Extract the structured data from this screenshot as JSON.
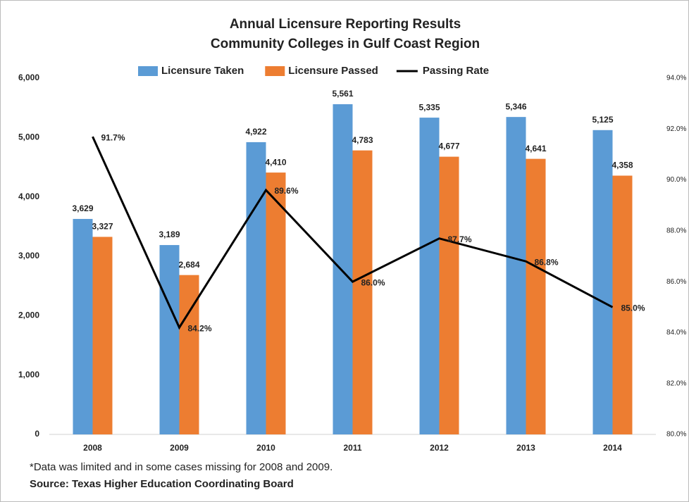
{
  "chart_data": {
    "type": "bar",
    "title": "Annual Licensure Reporting Results",
    "subtitle": "Community Colleges in Gulf Coast Region",
    "categories": [
      "2008",
      "2009",
      "2010",
      "2011",
      "2012",
      "2013",
      "2014"
    ],
    "series": [
      {
        "name": "Licensure Taken",
        "color": "#5b9bd5",
        "values": [
          3629,
          3189,
          4922,
          5561,
          5335,
          5346,
          5125
        ],
        "value_labels": [
          "3,629",
          "3,189",
          "4,922",
          "5,561",
          "5,335",
          "5,346",
          "5,125"
        ]
      },
      {
        "name": "Licensure Passed",
        "color": "#ed7d31",
        "values": [
          3327,
          2684,
          4410,
          4783,
          4677,
          4641,
          4358
        ],
        "value_labels": [
          "3,327",
          "2,684",
          "4,410",
          "4,783",
          "4,677",
          "4,641",
          "4,358"
        ]
      },
      {
        "name": "Passing Rate",
        "color": "#000000",
        "type": "line",
        "axis": "y2",
        "values": [
          91.7,
          84.2,
          89.6,
          86.0,
          87.7,
          86.8,
          85.0
        ],
        "value_labels": [
          "91.7%",
          "84.2%",
          "89.6%",
          "86.0%",
          "87.7%",
          "86.8%",
          "85.0%"
        ]
      }
    ],
    "ylim": [
      0,
      6000
    ],
    "yticks": [
      0,
      {
        "value": 1000,
        "label": "1,000"
      },
      {
        "value": 2000,
        "label": "2,000"
      },
      {
        "value": 3000,
        "label": "3,000"
      },
      {
        "value": 4000,
        "label": "4,000"
      },
      {
        "value": 5000,
        "label": "5,000"
      },
      {
        "value": 6000,
        "label": "6,000"
      }
    ],
    "y2lim": [
      80,
      94
    ],
    "y2ticks": [
      {
        "value": 80,
        "label": "80.0%"
      },
      {
        "value": 82,
        "label": "82.0%"
      },
      {
        "value": 84,
        "label": "84.0%"
      },
      {
        "value": 86,
        "label": "86.0%"
      },
      {
        "value": 88,
        "label": "88.0%"
      },
      {
        "value": 90,
        "label": "90.0%"
      },
      {
        "value": 92,
        "label": "92.0%"
      },
      {
        "value": 94,
        "label": "94.0%"
      }
    ],
    "legend": "top",
    "notes": [
      "*Data was limited and in some cases missing for 2008 and 2009.",
      "Source: Texas Higher Education Coordinating Board"
    ]
  }
}
